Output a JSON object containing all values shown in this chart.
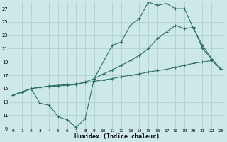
{
  "xlabel": "Humidex (Indice chaleur)",
  "bg_color": "#cde8e8",
  "grid_color": "#aacccc",
  "line_color": "#2d6e63",
  "xlim": [
    -0.5,
    23.5
  ],
  "ylim": [
    9,
    28
  ],
  "xticks": [
    0,
    1,
    2,
    3,
    4,
    5,
    6,
    7,
    8,
    9,
    10,
    11,
    12,
    13,
    14,
    15,
    16,
    17,
    18,
    19,
    20,
    21,
    22,
    23
  ],
  "yticks": [
    9,
    11,
    13,
    15,
    17,
    19,
    21,
    23,
    25,
    27
  ],
  "line1_x": [
    0,
    1,
    2,
    3,
    4,
    5,
    6,
    7,
    8,
    9,
    10,
    11,
    12,
    13,
    14,
    15,
    16,
    17,
    18,
    19,
    20,
    21,
    22,
    23
  ],
  "line1_y": [
    14.0,
    14.5,
    15.0,
    12.8,
    12.5,
    10.8,
    10.3,
    9.2,
    10.5,
    16.5,
    19.0,
    21.5,
    22.0,
    24.5,
    25.5,
    28.0,
    27.5,
    27.8,
    27.0,
    27.0,
    24.0,
    21.5,
    19.5,
    18.0
  ],
  "line2_x": [
    0,
    1,
    2,
    3,
    4,
    5,
    6,
    7,
    8,
    9,
    10,
    11,
    12,
    13,
    14,
    15,
    16,
    17,
    18,
    19,
    20,
    21,
    22,
    23
  ],
  "line2_y": [
    14.0,
    14.5,
    15.0,
    15.2,
    15.3,
    15.4,
    15.5,
    15.6,
    16.0,
    16.5,
    17.2,
    17.8,
    18.5,
    19.2,
    20.0,
    21.0,
    22.5,
    23.5,
    24.5,
    24.0,
    24.2,
    21.0,
    19.5,
    18.0
  ],
  "line3_x": [
    0,
    1,
    2,
    3,
    4,
    5,
    6,
    7,
    8,
    9,
    10,
    11,
    12,
    13,
    14,
    15,
    16,
    17,
    18,
    19,
    20,
    21,
    22,
    23
  ],
  "line3_y": [
    14.0,
    14.5,
    15.0,
    15.2,
    15.4,
    15.5,
    15.6,
    15.7,
    15.9,
    16.1,
    16.3,
    16.5,
    16.8,
    17.0,
    17.2,
    17.5,
    17.7,
    17.9,
    18.2,
    18.5,
    18.8,
    19.0,
    19.2,
    18.0
  ]
}
